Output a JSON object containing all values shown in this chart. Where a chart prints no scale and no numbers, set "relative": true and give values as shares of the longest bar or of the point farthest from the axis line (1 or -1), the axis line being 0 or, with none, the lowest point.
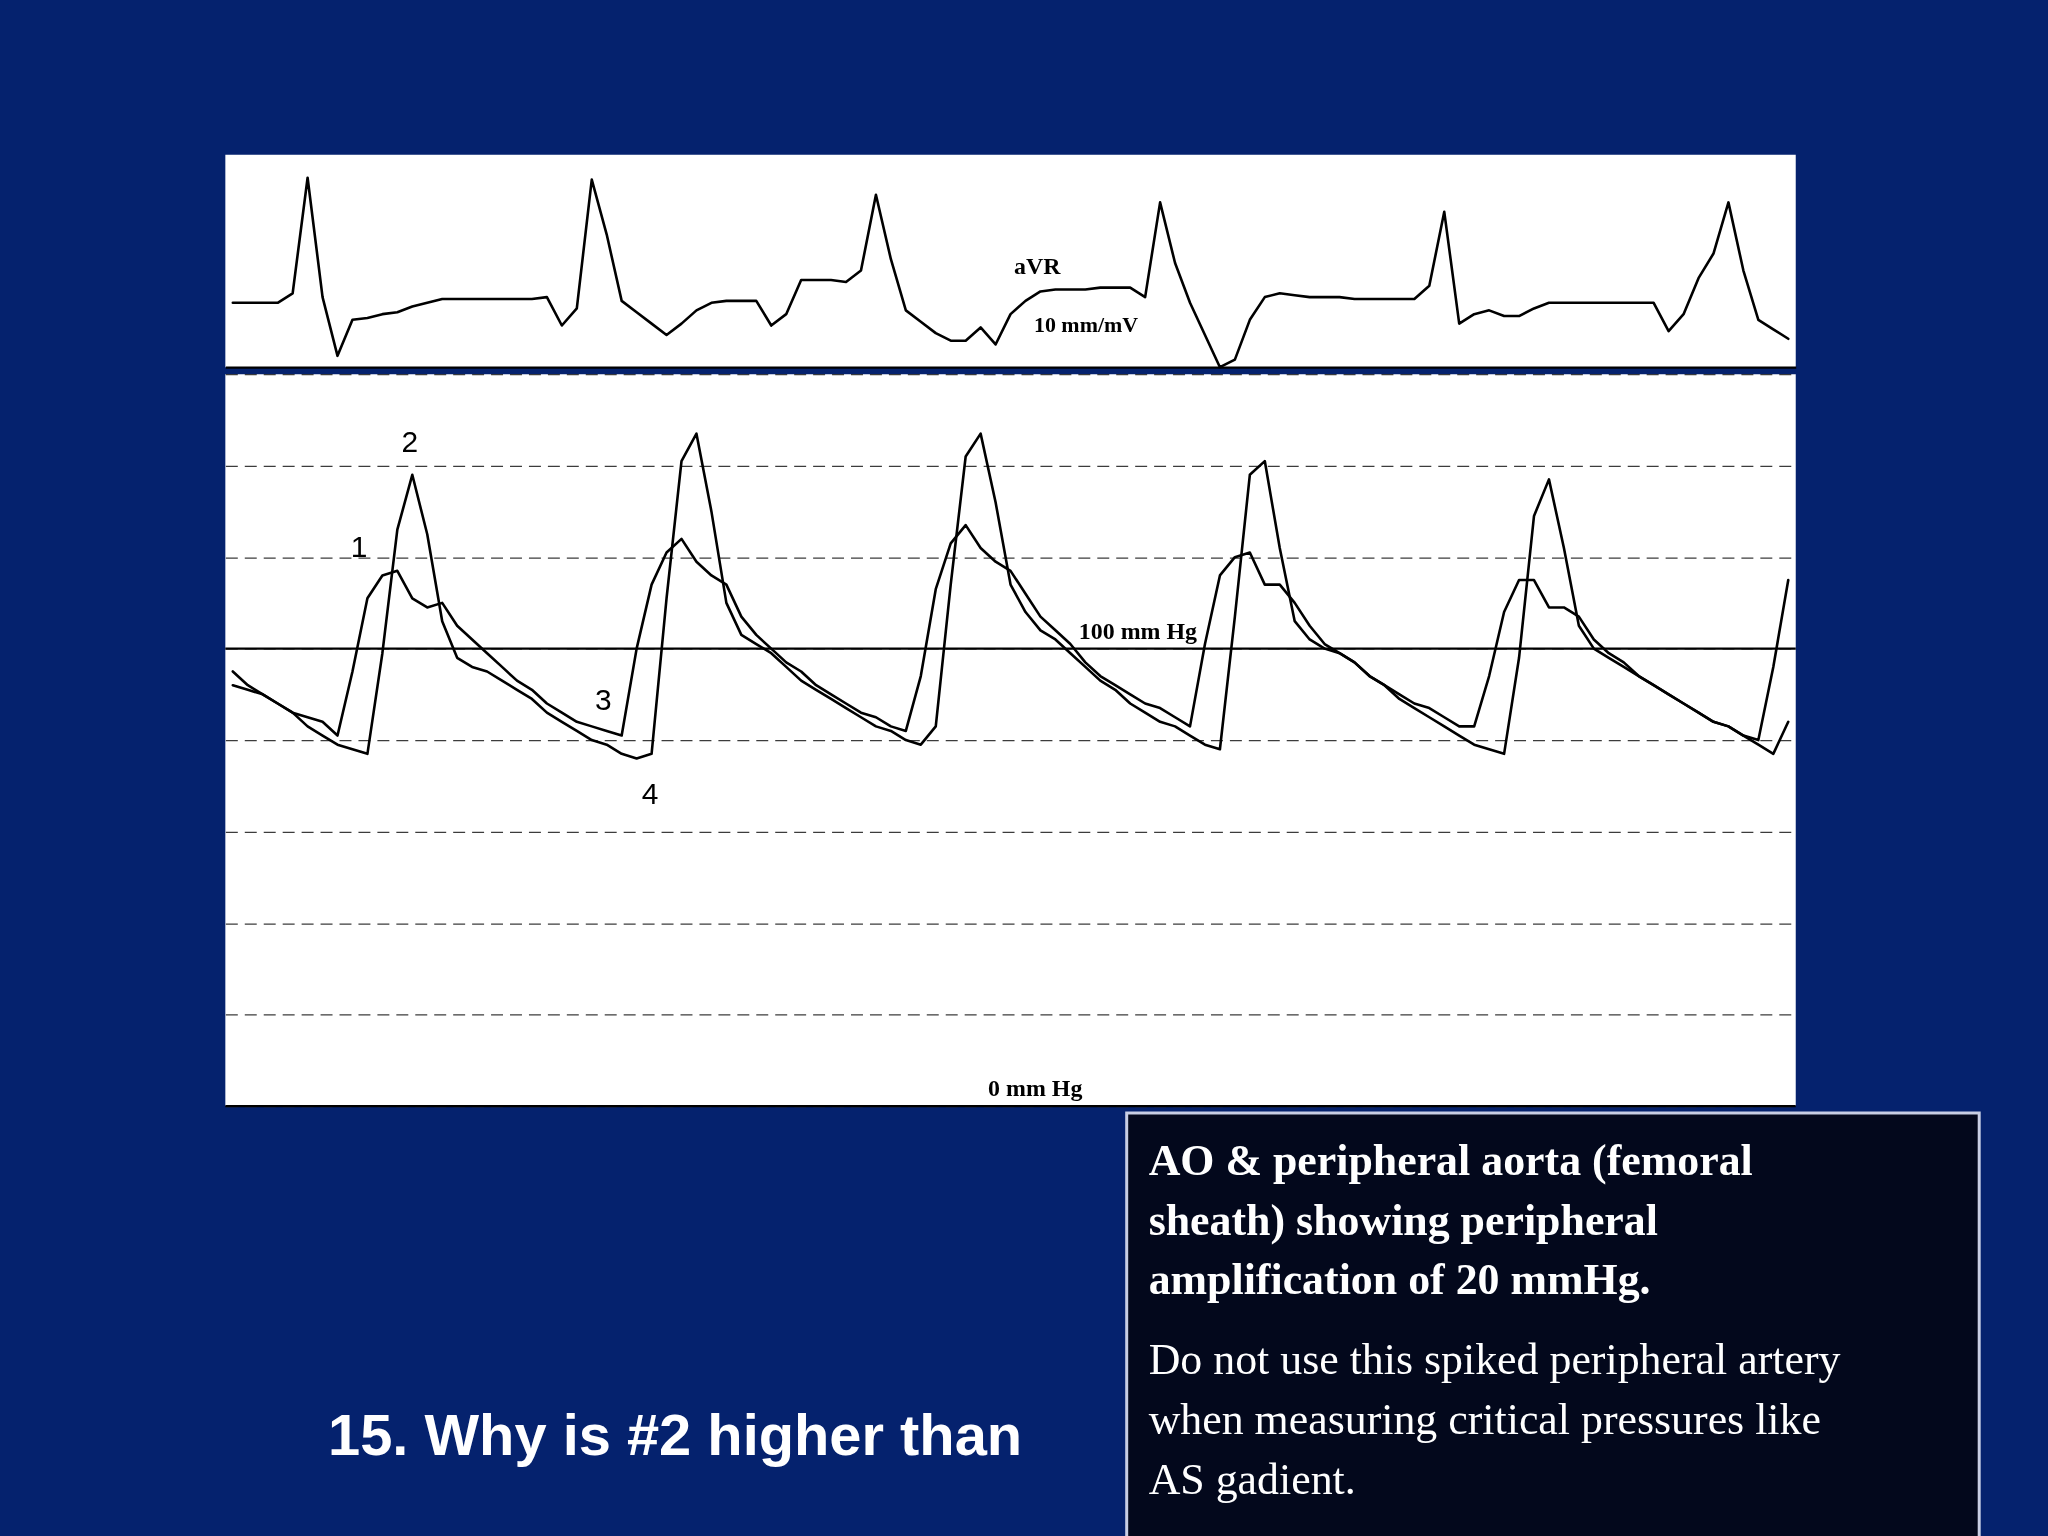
{
  "chart_data": [
    {
      "type": "line",
      "relative": true,
      "categories": [
        null,
        null,
        null,
        null,
        null,
        null,
        null,
        null,
        null,
        null,
        null,
        null,
        null,
        null,
        null,
        null,
        null,
        null,
        null,
        null,
        null,
        null,
        null,
        null,
        null,
        null,
        null,
        null,
        null,
        null,
        null,
        null,
        null,
        null,
        null,
        null,
        null,
        null,
        null,
        null,
        null,
        null,
        null,
        null,
        null,
        null,
        null,
        null,
        null,
        null,
        null,
        null,
        null,
        null,
        null,
        null,
        null,
        null,
        null,
        null,
        null,
        null,
        null,
        null,
        null,
        null,
        null,
        null,
        null,
        null,
        null,
        null,
        null,
        null,
        null,
        null,
        null,
        null,
        null,
        null,
        null,
        null,
        null,
        null,
        null,
        null,
        null,
        null,
        null,
        null,
        null,
        null,
        null,
        null,
        null,
        null,
        null,
        null,
        null,
        null,
        null,
        null,
        null,
        null,
        null
      ],
      "series": [
        {
          "color": "#000000",
          "values": [
            0.34,
            0.34,
            0.34,
            0.34,
            0.39,
            1,
            0.37,
            0.06,
            0.25,
            0.26,
            0.28,
            0.29,
            0.32,
            0.34,
            0.36,
            0.36,
            0.36,
            0.36,
            0.36,
            0.36,
            0.36,
            0.37,
            0.22,
            0.31,
            0.99,
            0.7,
            0.35,
            0.29,
            0.23,
            0.17,
            0.23,
            0.3,
            0.34,
            0.35,
            0.35,
            0.35,
            0.22,
            0.28,
            0.46,
            0.46,
            0.46,
            0.45,
            0.51,
            0.91,
            0.57,
            0.3,
            0.24,
            0.18,
            0.14,
            0.14,
            0.21,
            0.12,
            0.28,
            0.35,
            0.4,
            0.41,
            0.41,
            0.41,
            0.42,
            0.42,
            0.42,
            0.37,
            0.87,
            0.55,
            0.34,
            0.17,
            0,
            0.04,
            0.25,
            0.37,
            0.39,
            0.38,
            0.37,
            0.37,
            0.37,
            0.36,
            0.36,
            0.36,
            0.36,
            0.36,
            0.43,
            0.82,
            0.23,
            0.28,
            0.3,
            0.27,
            0.27,
            0.31,
            0.34,
            0.34,
            0.34,
            0.34,
            0.34,
            0.34,
            0.34,
            0.34,
            0.19,
            0.28,
            0.47,
            0.6,
            0.87,
            0.51,
            0.25,
            0.2,
            0.15
          ]
        }
      ],
      "annotations": [
        "aVR",
        "10 mm/mV"
      ]
    },
    {
      "type": "line",
      "title": "15. Why is #2 higher than",
      "categories": [
        null,
        null,
        null,
        null,
        null,
        null,
        null,
        null,
        null,
        null,
        null,
        null,
        null,
        null,
        null,
        null,
        null,
        null,
        null,
        null,
        null,
        null,
        null,
        null,
        null,
        null,
        null,
        null,
        null,
        null,
        null,
        null,
        null,
        null,
        null,
        null,
        null,
        null,
        null,
        null,
        null,
        null,
        null,
        null,
        null,
        null,
        null,
        null,
        null,
        null,
        null,
        null,
        null,
        null,
        null,
        null,
        null,
        null,
        null,
        null,
        null,
        null,
        null,
        null,
        null,
        null,
        null,
        null,
        null,
        null,
        null,
        null,
        null,
        null,
        null,
        null,
        null,
        null,
        null,
        null,
        null,
        null,
        null,
        null,
        null,
        null,
        null,
        null,
        null,
        null,
        null,
        null,
        null,
        null,
        null,
        null,
        null,
        null,
        null,
        null,
        null,
        null,
        null,
        null,
        null
      ],
      "series": [
        {
          "color": "#000000",
          "values": [
            95,
            92,
            90,
            88,
            86,
            85,
            84,
            81,
            95,
            111,
            116,
            117,
            111,
            109,
            110,
            105,
            102,
            99,
            96,
            93,
            91,
            88,
            86,
            84,
            83,
            82,
            81,
            100,
            114,
            121,
            124,
            119,
            116,
            114,
            107,
            103,
            100,
            97,
            95,
            92,
            90,
            88,
            86,
            85,
            83,
            82,
            94,
            113,
            123,
            127,
            122,
            119,
            117,
            112,
            107,
            104,
            101,
            97,
            94,
            92,
            90,
            88,
            87,
            85,
            83,
            101,
            116,
            120,
            121,
            114,
            114,
            110,
            105,
            101,
            99,
            97,
            94,
            92,
            90,
            88,
            87,
            85,
            83,
            83,
            94,
            108,
            115,
            115,
            109,
            109,
            107,
            102,
            99,
            97,
            94,
            92,
            90,
            88,
            86,
            84,
            83,
            81,
            80,
            96,
            115
          ]
        },
        {
          "color": "#000000",
          "values": [
            92,
            91,
            90,
            88,
            86,
            83,
            81,
            79,
            78,
            77,
            99,
            126,
            138,
            125,
            106,
            98,
            96,
            95,
            93,
            91,
            89,
            86,
            84,
            82,
            80,
            79,
            77,
            76,
            77,
            111,
            141,
            147,
            130,
            110,
            103,
            101,
            99,
            96,
            93,
            91,
            89,
            87,
            85,
            83,
            82,
            80,
            79,
            83,
            114,
            142,
            147,
            132,
            114,
            108,
            104,
            102,
            99,
            96,
            93,
            91,
            88,
            86,
            84,
            83,
            81,
            79,
            78,
            107,
            138,
            141,
            122,
            106,
            102,
            100,
            99,
            97,
            94,
            92,
            89,
            87,
            85,
            83,
            81,
            79,
            78,
            77,
            98,
            129,
            137,
            122,
            105,
            100,
            98,
            96,
            94,
            92,
            90,
            88,
            86,
            84,
            83,
            81,
            79,
            77,
            84
          ]
        }
      ],
      "ylim": [
        0,
        160
      ],
      "yticks": [
        {
          "value": 0,
          "label": null
        },
        {
          "value": 20,
          "label": null
        },
        {
          "value": 40,
          "label": null
        },
        {
          "value": 60,
          "label": null
        },
        {
          "value": 80,
          "label": null
        },
        {
          "value": 100,
          "label": null
        },
        {
          "value": 120,
          "label": null
        },
        {
          "value": 140,
          "label": null
        },
        {
          "value": 160,
          "label": null
        }
      ],
      "grid": "y",
      "ref_lines": [
        {
          "axis": "y",
          "value": 100,
          "label": "100 mm Hg"
        },
        {
          "axis": "y",
          "value": 0,
          "label": "0 mm Hg"
        }
      ],
      "annotations": [
        "1",
        {
          "text": "2",
          "y": 139
        },
        {
          "text": "3",
          "y": 82
        },
        "4"
      ]
    },
    {
      "type": "other",
      "annotations": [
        "AO & peripheral aorta (femoral sheath) showing peripheral amplification of 20 mmHg.",
        "Do not use this spiked peripheral artery when measuring critical pressures like AS gadient."
      ]
    }
  ]
}
